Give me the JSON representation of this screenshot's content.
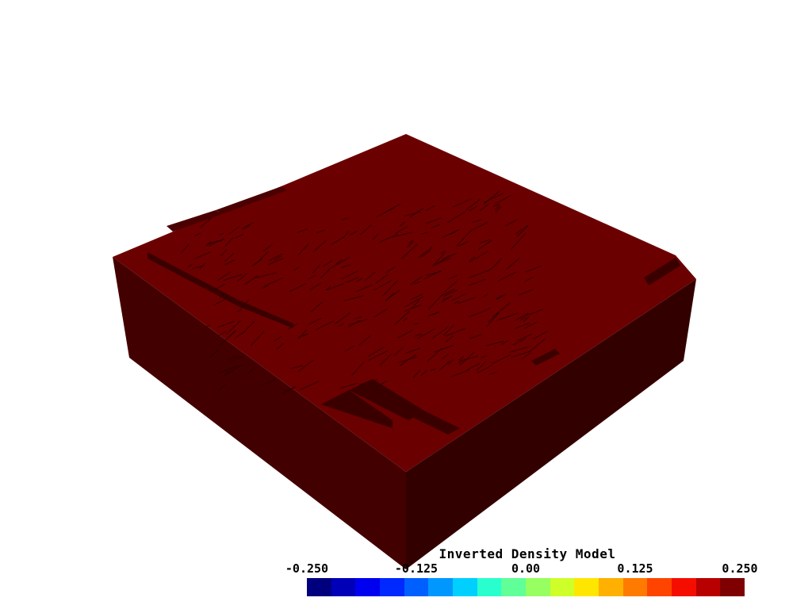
{
  "render": {
    "colors": {
      "top": "#6b0000",
      "left_side": "#430000",
      "right_side": "#330000",
      "texture": "#2a0000",
      "background": "#ffffff"
    }
  },
  "scalar_bar": {
    "title": "Inverted Density Model",
    "range": [
      -0.25,
      0.25
    ],
    "tick_labels": [
      "-0.250",
      "-0.125",
      "0.00",
      "0.125",
      "0.250"
    ],
    "colormap": [
      "#00007f",
      "#0000b8",
      "#0000f0",
      "#0028ff",
      "#0060ff",
      "#0098ff",
      "#00d0ff",
      "#29ffce",
      "#60ff97",
      "#97ff60",
      "#ceff29",
      "#ffe600",
      "#ffb000",
      "#ff7a00",
      "#ff4400",
      "#f50e00",
      "#b80000",
      "#7f0000"
    ]
  }
}
